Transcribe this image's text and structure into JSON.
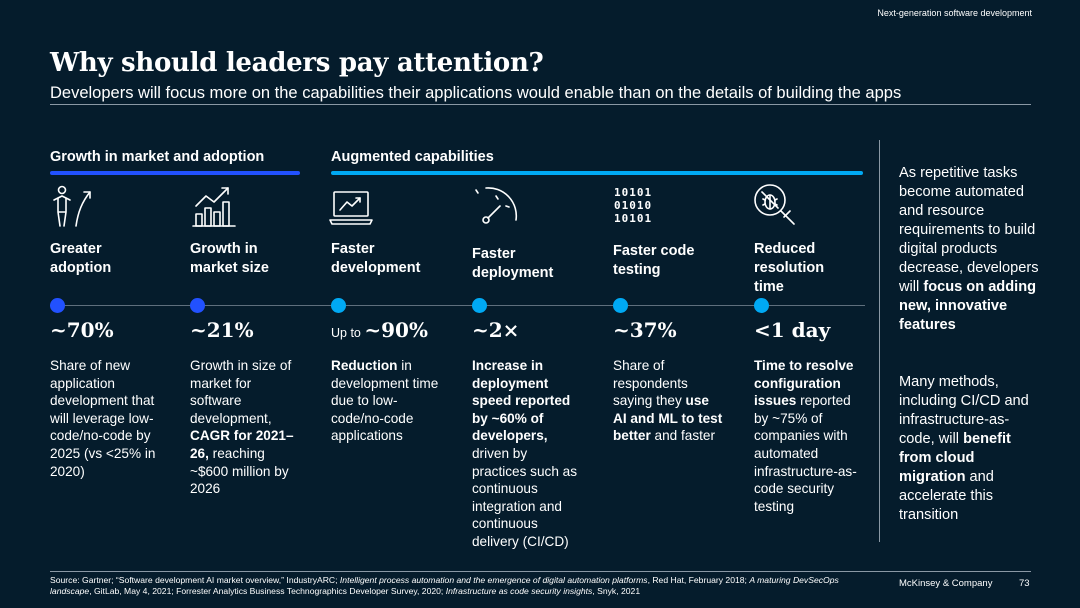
{
  "header": {
    "section_tag": "Next-generation software development",
    "title": "Why should leaders pay attention?",
    "subtitle": "Developers will focus more on the capabilities their applications would enable than on the details of building the apps"
  },
  "groups": [
    {
      "label": "Growth in market and adoption",
      "color": "#2251ff"
    },
    {
      "label": "Augmented capabilities",
      "color": "#00a9f4"
    }
  ],
  "columns": [
    {
      "icon": "person-arrow-up-icon",
      "label_lines": [
        "Greater",
        "adoption"
      ],
      "stat_prefix": "",
      "stat": "~70%",
      "dot_color": "#2251ff",
      "desc": [
        {
          "t": "Share of new application development that will leverage low-code/no-code by 2025 (vs <25% in 2020)",
          "b": false
        }
      ]
    },
    {
      "icon": "bar-chart-growth-icon",
      "label_lines": [
        "Growth in",
        "market size"
      ],
      "stat_prefix": "",
      "stat": "~21%",
      "dot_color": "#2251ff",
      "desc": [
        {
          "t": "Growth in size of market for software development, ",
          "b": false
        },
        {
          "t": "CAGR for 2021–26,",
          "b": true
        },
        {
          "t": " reaching ~$600 million by 2026",
          "b": false
        }
      ]
    },
    {
      "icon": "laptop-chart-icon",
      "label_lines": [
        "Faster",
        "development"
      ],
      "stat_prefix": "Up to ",
      "stat": "~90%",
      "dot_color": "#00a9f4",
      "desc": [
        {
          "t": "Reduction",
          "b": true
        },
        {
          "t": " in development time due to low-code/no-code applications",
          "b": false
        }
      ]
    },
    {
      "icon": "speedometer-icon",
      "label_lines": [
        "Faster",
        "deployment"
      ],
      "stat_prefix": "",
      "stat": "~2×",
      "dot_color": "#00a9f4",
      "desc": [
        {
          "t": "Increase in deployment speed reported by ~60% of developers,",
          "b": true
        },
        {
          "t": " driven by practices such as continuous integration and continuous delivery (CI/CD)",
          "b": false
        }
      ]
    },
    {
      "icon": "binary-code-icon",
      "binary_lines": [
        "10101",
        "01010",
        "10101"
      ],
      "label_lines": [
        "Faster code",
        "testing"
      ],
      "stat_prefix": "",
      "stat": "~37%",
      "dot_color": "#00a9f4",
      "desc": [
        {
          "t": "Share of respondents saying they ",
          "b": false
        },
        {
          "t": "use AI and ML to test better",
          "b": true
        },
        {
          "t": " and faster",
          "b": false
        }
      ]
    },
    {
      "icon": "bug-magnifier-icon",
      "label_lines": [
        "Reduced",
        "resolution",
        "time"
      ],
      "stat_prefix": "",
      "stat": "<1 day",
      "dot_color": "#00a9f4",
      "desc": [
        {
          "t": "Time to resolve configuration issues",
          "b": true
        },
        {
          "t": " reported by ~75% of companies with automated infrastructure-as-code security testing",
          "b": false
        }
      ]
    }
  ],
  "sidebar": {
    "para1": [
      {
        "t": "As repetitive tasks become automated and resource requirements to build digital products decrease, developers will ",
        "b": false
      },
      {
        "t": "focus on adding new, innovative features",
        "b": true
      }
    ],
    "para2": [
      {
        "t": "Many methods, including CI/CD and infrastructure-as-code, will ",
        "b": false
      },
      {
        "t": "benefit from cloud migration",
        "b": true
      },
      {
        "t": " and accelerate this transition",
        "b": false
      }
    ]
  },
  "footer": {
    "source": [
      {
        "t": "Source: Gartner; “Software development AI market overview,” IndustryARC; ",
        "i": false
      },
      {
        "t": "Intelligent process automation and the emergence of digital automation platforms",
        "i": true
      },
      {
        "t": ", Red Hat, February 2018; ",
        "i": false
      },
      {
        "t": "A maturing DevSecOps landscape",
        "i": true
      },
      {
        "t": ", GitLab, May 4, 2021; Forrester Analytics Business Technographics Developer Survey, 2020; ",
        "i": false
      },
      {
        "t": "Infrastructure as code security insights",
        "i": true
      },
      {
        "t": ", Snyk, 2021",
        "i": false
      }
    ],
    "brand": "McKinsey & Company",
    "page_number": "73"
  }
}
